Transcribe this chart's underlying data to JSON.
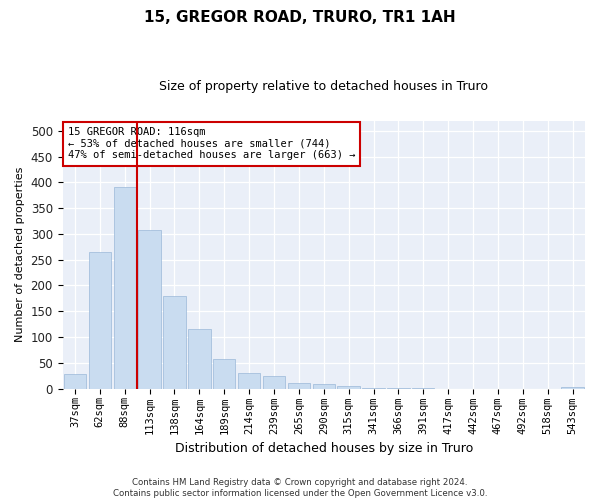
{
  "title1": "15, GREGOR ROAD, TRURO, TR1 1AH",
  "title2": "Size of property relative to detached houses in Truro",
  "xlabel": "Distribution of detached houses by size in Truro",
  "ylabel": "Number of detached properties",
  "categories": [
    "37sqm",
    "62sqm",
    "88sqm",
    "113sqm",
    "138sqm",
    "164sqm",
    "189sqm",
    "214sqm",
    "239sqm",
    "265sqm",
    "290sqm",
    "315sqm",
    "341sqm",
    "366sqm",
    "391sqm",
    "417sqm",
    "442sqm",
    "467sqm",
    "492sqm",
    "518sqm",
    "543sqm"
  ],
  "values": [
    28,
    265,
    392,
    308,
    180,
    115,
    58,
    30,
    24,
    11,
    8,
    4,
    1,
    1,
    1,
    0,
    0,
    0,
    0,
    0,
    3
  ],
  "bar_color": "#c9dcf0",
  "bar_edge_color": "#9ab8d8",
  "vline_color": "#cc0000",
  "annotation_text": "15 GREGOR ROAD: 116sqm\n← 53% of detached houses are smaller (744)\n47% of semi-detached houses are larger (663) →",
  "annotation_box_color": "#ffffff",
  "annotation_box_edge": "#cc0000",
  "ylim": [
    0,
    520
  ],
  "yticks": [
    0,
    50,
    100,
    150,
    200,
    250,
    300,
    350,
    400,
    450,
    500
  ],
  "footnote": "Contains HM Land Registry data © Crown copyright and database right 2024.\nContains public sector information licensed under the Open Government Licence v3.0.",
  "plot_bg_color": "#eaeff8"
}
